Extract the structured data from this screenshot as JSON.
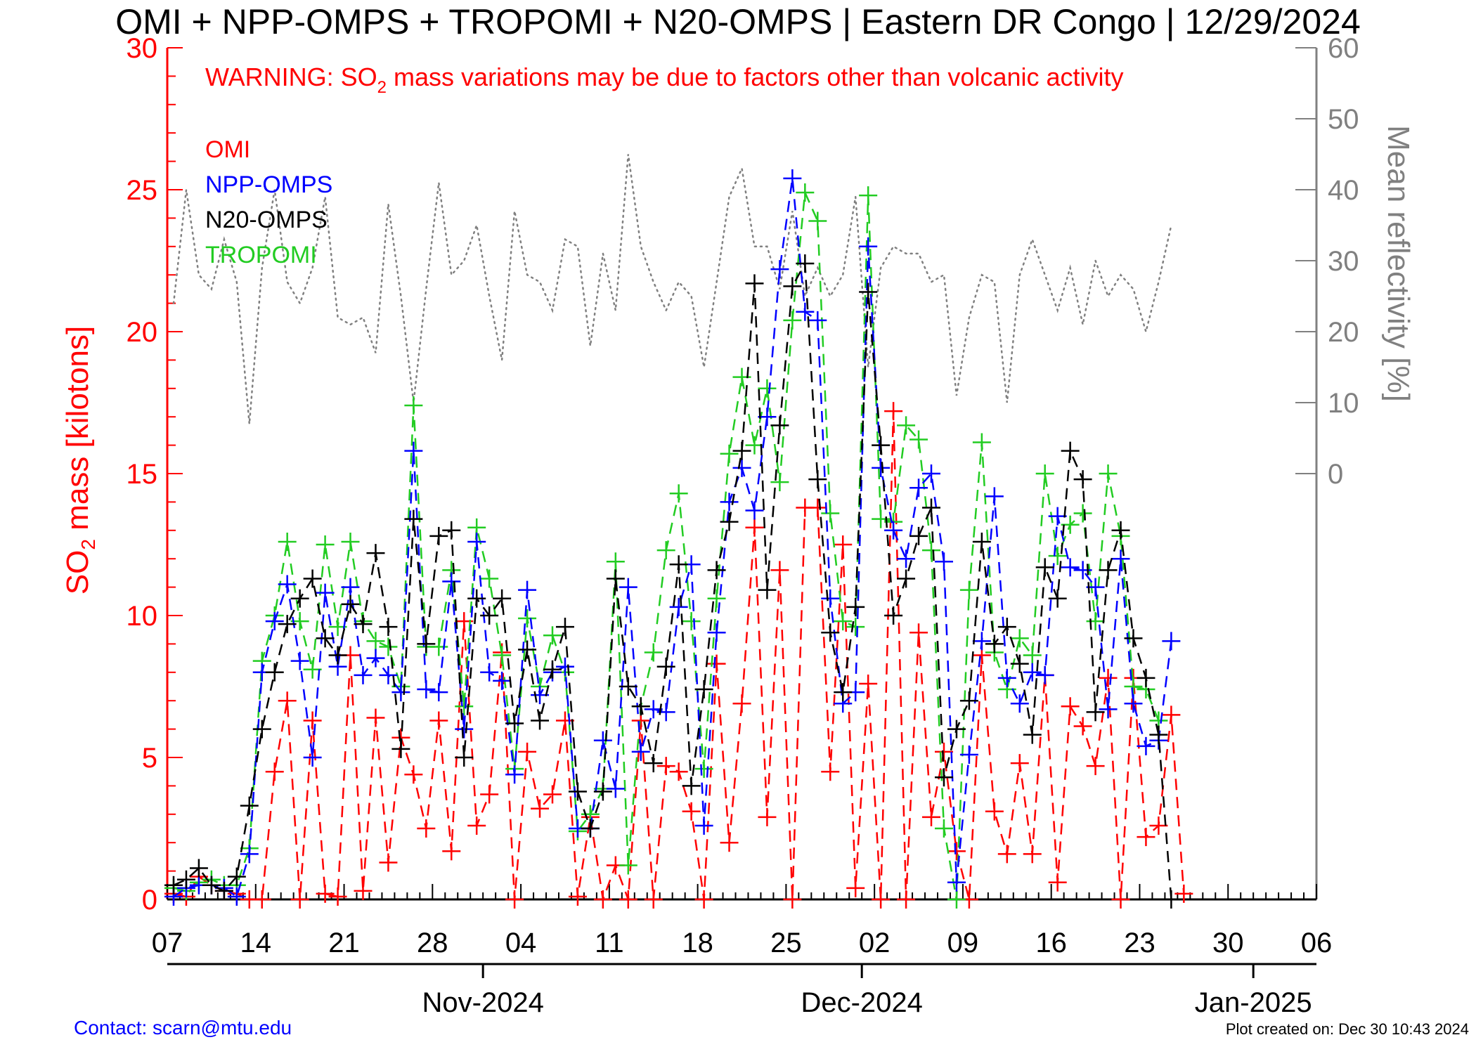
{
  "chart_data": {
    "type": "line",
    "title": "OMI + NPP-OMPS + TROPOMI + N20-OMPS | Eastern DR Congo | 12/29/2024",
    "warning_prefix": "WARNING: SO",
    "warning_sub": "2",
    "warning_suffix": " mass variations may be due to factors other than volcanic activity",
    "ylabel_prefix": "SO",
    "ylabel_sub": "2",
    "ylabel_suffix": " mass [kilotons]",
    "y2label": "Mean reflectivity [%]",
    "ylim": [
      0,
      30
    ],
    "y2lim": [
      -60,
      60
    ],
    "yticks": [
      0,
      5,
      10,
      15,
      20,
      25,
      30
    ],
    "y2ticks": [
      0,
      10,
      20,
      30,
      40,
      50,
      60
    ],
    "xlim": [
      "2024-10-07",
      "2025-01-06"
    ],
    "xticks": [
      {
        "date": "2024-10-07",
        "label": "07"
      },
      {
        "date": "2024-10-14",
        "label": "14"
      },
      {
        "date": "2024-10-21",
        "label": "21"
      },
      {
        "date": "2024-10-28",
        "label": "28"
      },
      {
        "date": "2024-11-04",
        "label": "04"
      },
      {
        "date": "2024-11-11",
        "label": "11"
      },
      {
        "date": "2024-11-18",
        "label": "18"
      },
      {
        "date": "2024-11-25",
        "label": "25"
      },
      {
        "date": "2024-12-02",
        "label": "02"
      },
      {
        "date": "2024-12-09",
        "label": "09"
      },
      {
        "date": "2024-12-16",
        "label": "16"
      },
      {
        "date": "2024-12-23",
        "label": "23"
      },
      {
        "date": "2024-12-30",
        "label": "30"
      },
      {
        "date": "2025-01-06",
        "label": "06"
      }
    ],
    "months": [
      {
        "date": "2024-11-01",
        "label": "Nov-2024"
      },
      {
        "date": "2024-12-01",
        "label": "Dec-2024"
      },
      {
        "date": "2025-01-01",
        "label": "Jan-2025"
      }
    ],
    "grid": false,
    "legend_position": "top-left",
    "start_date": "2024-10-07",
    "series": [
      {
        "name": "OMI",
        "color": "#ff0000",
        "values": [
          0.2,
          0.1,
          0.8,
          0.5,
          0.3,
          0.2,
          0,
          0,
          4.5,
          7.0,
          0,
          6.3,
          0.2,
          0.1,
          8.6,
          0.3,
          6.4,
          1.3,
          5.7,
          4.4,
          2.5,
          6.3,
          1.7,
          9.8,
          2.6,
          3.7,
          8.7,
          0,
          5.2,
          3.2,
          3.7,
          6.3,
          0.1,
          2.9,
          0,
          1.2,
          0,
          6.3,
          0,
          4.7,
          4.5,
          3.1,
          0,
          8.3,
          2.0,
          6.9,
          13.1,
          2.9,
          11.6,
          0,
          13.8,
          13.8,
          4.5,
          12.5,
          0.4,
          7.6,
          0,
          17.2,
          0,
          9.4,
          2.9,
          5.2,
          1.7,
          0,
          8.6,
          3.1,
          1.6,
          4.8,
          1.6,
          7.9,
          0.6,
          6.8,
          6.1,
          4.7,
          7.8,
          0,
          7.8,
          2.2,
          2.6,
          6.5,
          0.2
        ]
      },
      {
        "name": "NPP-OMPS",
        "color": "#0000ff",
        "values": [
          0.1,
          0.4,
          0.5,
          0.5,
          0.4,
          0.1,
          1.6,
          8.0,
          9.8,
          11.1,
          8.4,
          5.0,
          10.8,
          8.2,
          11.0,
          7.9,
          8.5,
          7.9,
          7.3,
          15.8,
          7.4,
          7.3,
          11.2,
          6.0,
          12.6,
          8.0,
          7.7,
          4.4,
          10.9,
          7.2,
          8.0,
          8.2,
          2.5,
          2.5,
          5.6,
          3.9,
          11.0,
          5.2,
          6.7,
          6.6,
          10.3,
          11.8,
          2.6,
          9.4,
          14.0,
          15.2,
          13.7,
          17.0,
          22.2,
          25.4,
          20.7,
          20.4,
          10.6,
          6.9,
          7.3,
          23.0,
          15.2,
          13.0,
          12.0,
          14.5,
          15.0,
          11.9,
          0.6,
          5.1,
          9.1,
          14.2,
          7.8,
          6.9,
          8.0,
          7.9,
          13.5,
          11.7,
          11.6,
          11.0,
          6.7,
          12.0,
          6.9,
          5.4,
          5.6,
          9.1
        ]
      },
      {
        "name": "N20-OMPS",
        "color": "#000000",
        "values": [
          0.5,
          0.7,
          1.1,
          0.5,
          0.3,
          0.8,
          3.3,
          6.0,
          8.0,
          9.7,
          10.6,
          11.3,
          9.2,
          8.6,
          10.4,
          9.7,
          12.2,
          9.6,
          5.3,
          13.4,
          9.0,
          12.8,
          13.0,
          5.0,
          10.6,
          10.0,
          10.6,
          6.2,
          8.8,
          6.3,
          8.1,
          9.6,
          3.8,
          2.5,
          3.8,
          11.3,
          7.5,
          6.8,
          4.8,
          8.2,
          11.8,
          4.0,
          7.4,
          11.6,
          13.3,
          15.8,
          21.7,
          10.9,
          16.7,
          21.6,
          22.4,
          14.8,
          9.4,
          7.3,
          10.3,
          21.4,
          16.0,
          10.0,
          11.3,
          12.8,
          13.8,
          4.3,
          6.0,
          7.0,
          12.6,
          9.0,
          9.6,
          8.3,
          5.8,
          11.7,
          10.6,
          15.8,
          14.8,
          6.6,
          11.6,
          13.0,
          9.2,
          7.8,
          5.8,
          0
        ]
      },
      {
        "name": "TROPOMI",
        "color": "#22cc22",
        "values": [
          0.4,
          0.3,
          0.6,
          0.7,
          0.5,
          0.5,
          1.8,
          8.4,
          10.0,
          12.6,
          9.8,
          8.1,
          12.5,
          9.6,
          12.6,
          9.8,
          9.1,
          8.9,
          7.5,
          17.4,
          8.9,
          8.9,
          11.6,
          6.8,
          13.1,
          11.3,
          8.6,
          4.6,
          9.9,
          7.5,
          9.3,
          8.0,
          2.4,
          3.0,
          3.9,
          11.9,
          1.2,
          6.8,
          8.7,
          12.3,
          14.3,
          9.8,
          4.6,
          10.6,
          15.7,
          18.4,
          16.0,
          18.0,
          14.7,
          20.4,
          24.9,
          23.9,
          13.6,
          9.8,
          9.6,
          24.8,
          13.4,
          13.3,
          16.7,
          16.2,
          12.3,
          2.5,
          0,
          10.9,
          16.1,
          8.7,
          7.4,
          9.2,
          8.6,
          15.0,
          12.1,
          13.2,
          13.6,
          9.8,
          15.0,
          12.8,
          7.5,
          7.4,
          6.3
        ]
      },
      {
        "name": "Mean reflectivity",
        "color": "#808080",
        "axis": "right",
        "values": [
          24,
          40,
          28,
          26,
          33,
          27,
          7,
          29,
          40,
          27,
          24,
          29,
          39,
          22,
          21,
          22,
          17,
          38,
          25,
          10,
          26,
          41,
          28,
          30,
          35,
          25,
          16,
          37,
          28,
          27,
          23,
          33,
          32,
          18,
          31,
          23,
          45,
          32,
          27,
          23,
          27,
          25,
          15,
          27,
          39,
          43,
          32,
          32,
          26,
          37,
          25,
          29,
          25,
          28,
          39,
          15,
          29,
          32,
          31,
          31,
          27,
          28,
          11,
          22,
          28,
          27,
          10,
          28,
          33,
          28,
          23,
          29,
          21,
          30,
          25,
          28,
          26,
          20,
          27,
          35
        ]
      }
    ]
  },
  "footer": {
    "contact": "Contact: scarn@mtu.edu",
    "created": "Plot created on: Dec 30 10:43 2024"
  }
}
